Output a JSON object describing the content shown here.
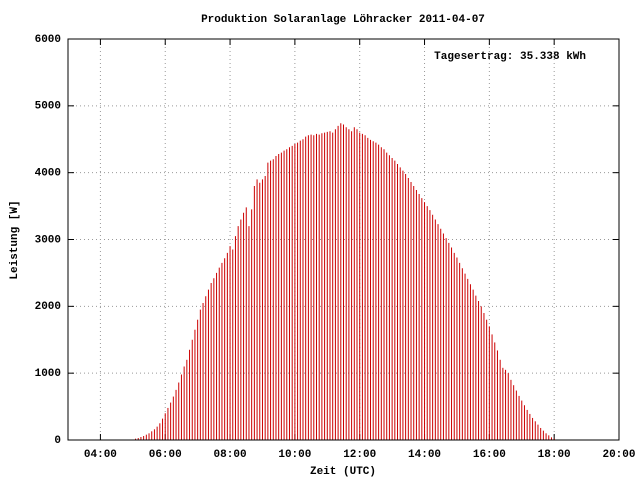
{
  "chart_data": {
    "type": "impulse",
    "title": "Produktion Solaranlage Löhracker 2011-04-07",
    "x_label": "Zeit (UTC)",
    "y_label": "Leistung [W]",
    "annotation": "Tagesertrag: 35.338 kWh",
    "color": "#cc0000",
    "grid": true,
    "xlim": [
      180,
      1200
    ],
    "ylim": [
      0,
      6000
    ],
    "xticks": [
      {
        "value": 240,
        "label": "04:00"
      },
      {
        "value": 360,
        "label": "06:00"
      },
      {
        "value": 480,
        "label": "08:00"
      },
      {
        "value": 600,
        "label": "10:00"
      },
      {
        "value": 720,
        "label": "12:00"
      },
      {
        "value": 840,
        "label": "14:00"
      },
      {
        "value": 960,
        "label": "16:00"
      },
      {
        "value": 1080,
        "label": "18:00"
      },
      {
        "value": 1200,
        "label": "20:00"
      }
    ],
    "yticks": [
      0,
      1000,
      2000,
      3000,
      4000,
      5000,
      6000
    ],
    "x": [
      305,
      310,
      315,
      320,
      325,
      330,
      335,
      340,
      345,
      350,
      355,
      360,
      365,
      370,
      375,
      380,
      385,
      390,
      395,
      400,
      405,
      410,
      415,
      420,
      425,
      430,
      435,
      440,
      445,
      450,
      455,
      460,
      465,
      470,
      475,
      480,
      485,
      490,
      495,
      500,
      505,
      510,
      515,
      520,
      525,
      530,
      535,
      540,
      545,
      550,
      555,
      560,
      565,
      570,
      575,
      580,
      585,
      590,
      595,
      600,
      605,
      610,
      615,
      620,
      625,
      630,
      635,
      640,
      645,
      650,
      655,
      660,
      665,
      670,
      675,
      680,
      685,
      690,
      695,
      700,
      705,
      710,
      715,
      720,
      725,
      730,
      735,
      740,
      745,
      750,
      755,
      760,
      765,
      770,
      775,
      780,
      785,
      790,
      795,
      800,
      805,
      810,
      815,
      820,
      825,
      830,
      835,
      840,
      845,
      850,
      855,
      860,
      865,
      870,
      875,
      880,
      885,
      890,
      895,
      900,
      905,
      910,
      915,
      920,
      925,
      930,
      935,
      940,
      945,
      950,
      955,
      960,
      965,
      970,
      975,
      980,
      985,
      990,
      995,
      1000,
      1005,
      1010,
      1015,
      1020,
      1025,
      1030,
      1035,
      1040,
      1045,
      1050,
      1055,
      1060,
      1065,
      1070,
      1075,
      1080
    ],
    "values": [
      20,
      30,
      45,
      60,
      80,
      100,
      130,
      160,
      200,
      250,
      320,
      400,
      480,
      560,
      650,
      750,
      860,
      980,
      1100,
      1200,
      1350,
      1500,
      1650,
      1800,
      1950,
      2050,
      2150,
      2250,
      2350,
      2420,
      2500,
      2580,
      2650,
      2720,
      2800,
      2900,
      2850,
      3050,
      3200,
      3300,
      3400,
      3480,
      3200,
      3450,
      3800,
      3900,
      3850,
      3900,
      3950,
      4150,
      4180,
      4200,
      4250,
      4280,
      4300,
      4330,
      4350,
      4380,
      4400,
      4430,
      4450,
      4480,
      4500,
      4540,
      4560,
      4570,
      4560,
      4580,
      4570,
      4590,
      4600,
      4610,
      4620,
      4600,
      4650,
      4700,
      4740,
      4720,
      4680,
      4650,
      4620,
      4680,
      4650,
      4600,
      4580,
      4560,
      4520,
      4490,
      4470,
      4450,
      4420,
      4380,
      4350,
      4300,
      4260,
      4220,
      4180,
      4130,
      4080,
      4030,
      3980,
      3920,
      3860,
      3800,
      3740,
      3680,
      3620,
      3560,
      3500,
      3440,
      3370,
      3300,
      3230,
      3160,
      3090,
      3020,
      2950,
      2880,
      2800,
      2730,
      2650,
      2570,
      2490,
      2410,
      2330,
      2250,
      2160,
      2080,
      2000,
      1900,
      1800,
      1700,
      1580,
      1460,
      1340,
      1200,
      1080,
      1050,
      1000,
      900,
      820,
      740,
      660,
      590,
      520,
      450,
      390,
      330,
      280,
      230,
      180,
      140,
      100,
      70,
      40,
      20
    ]
  }
}
